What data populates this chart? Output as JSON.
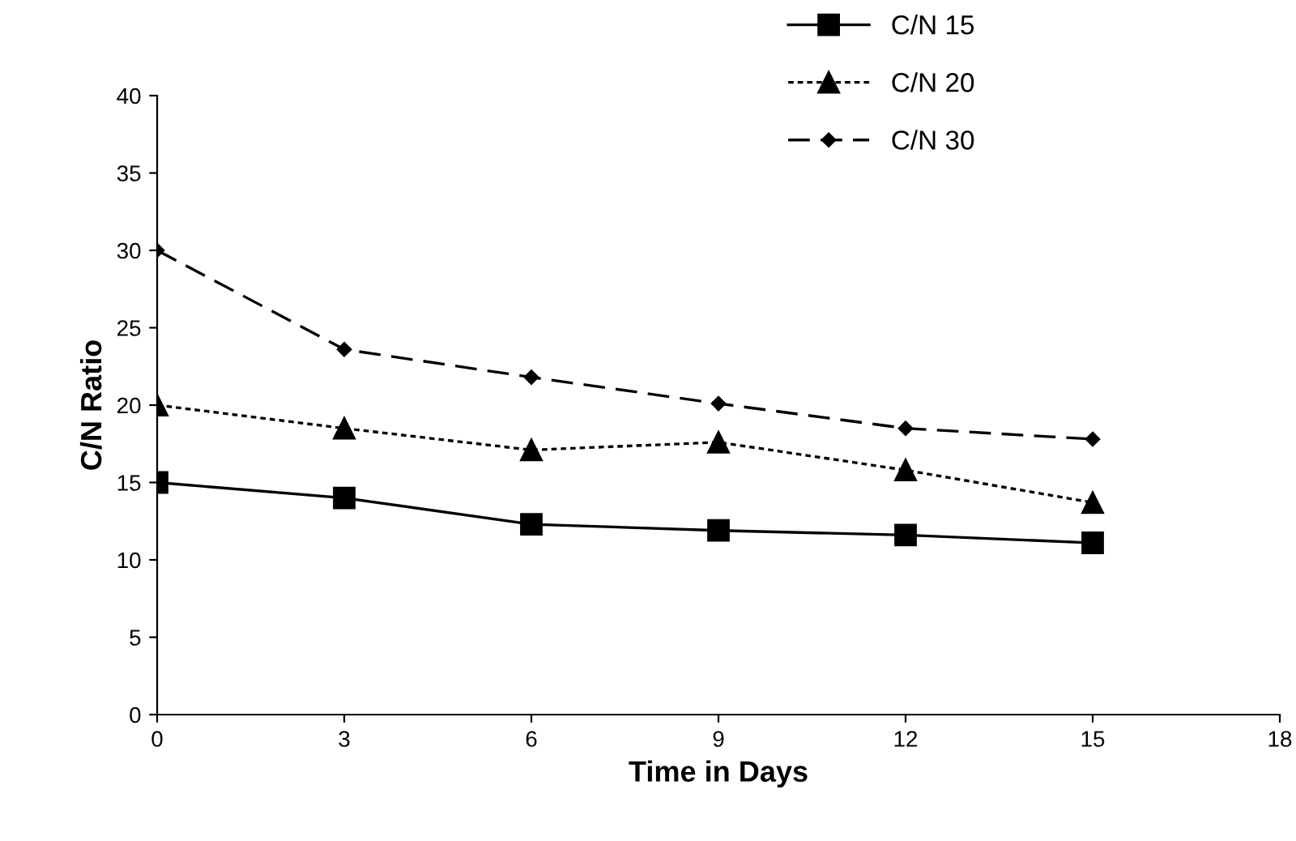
{
  "chart_data": {
    "type": "line",
    "xlabel": "Time in Days",
    "ylabel": "C/N Ratio",
    "x": [
      0,
      3,
      6,
      9,
      12,
      15
    ],
    "series": [
      {
        "name": "C/N 15",
        "color": "#000000",
        "marker": "square",
        "line_style": "solid",
        "values": [
          15,
          14,
          12.3,
          11.9,
          11.6,
          11.1
        ]
      },
      {
        "name": "C/N 20",
        "color": "#000000",
        "marker": "triangle",
        "line_style": "dotted",
        "values": [
          20,
          18.5,
          17.1,
          17.6,
          15.8,
          13.7
        ]
      },
      {
        "name": "C/N 30",
        "color": "#000000",
        "marker": "diamond",
        "line_style": "dashed",
        "values": [
          30,
          23.6,
          21.8,
          20.1,
          18.5,
          17.8
        ]
      }
    ],
    "xlim": [
      0,
      18
    ],
    "xticks": [
      0,
      3,
      6,
      9,
      12,
      15,
      18
    ],
    "ylim": [
      0,
      40
    ],
    "yticks": [
      0,
      5,
      10,
      15,
      20,
      25,
      30,
      35,
      40
    ],
    "grid": false,
    "legend": "top right"
  }
}
